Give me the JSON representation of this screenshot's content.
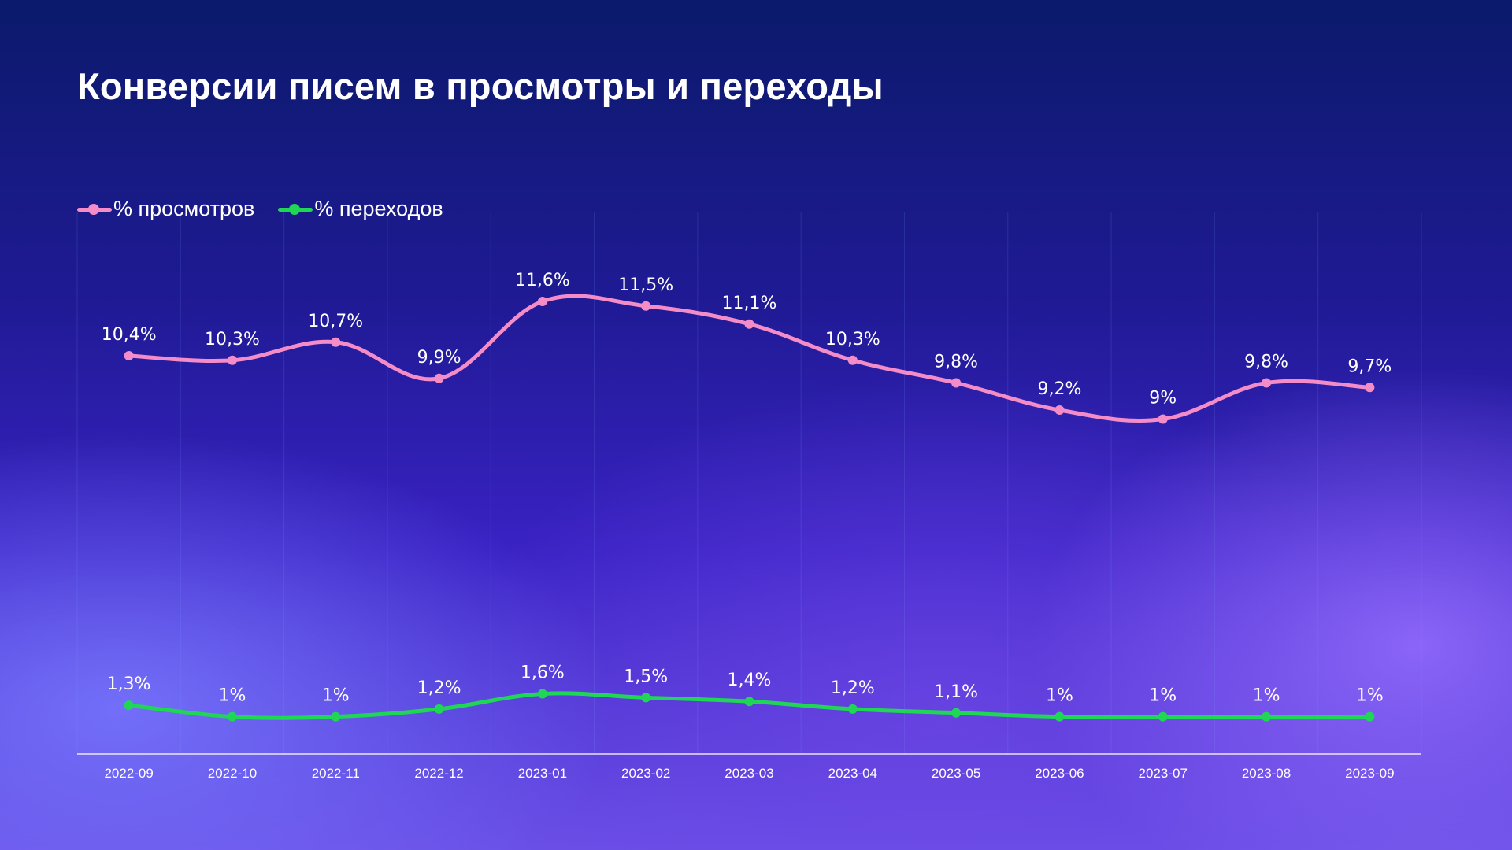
{
  "page": {
    "title": "Конверсии писем в просмотры и переходы"
  },
  "chart_data": {
    "type": "line",
    "title": "Конверсии писем в просмотры и переходы",
    "xlabel": "",
    "ylabel": "",
    "grid": "vertical",
    "legend_position": "top-left",
    "categories": [
      "2022-09",
      "2022-10",
      "2022-11",
      "2022-12",
      "2023-01",
      "2023-02",
      "2023-03",
      "2023-04",
      "2023-05",
      "2023-06",
      "2023-07",
      "2023-08",
      "2023-09"
    ],
    "series": [
      {
        "name": "% просмотров",
        "color": "#f48cc8",
        "values": [
          10.4,
          10.3,
          10.7,
          9.9,
          11.6,
          11.5,
          11.1,
          10.3,
          9.8,
          9.2,
          9.0,
          9.8,
          9.7
        ],
        "labels": [
          "10,4%",
          "10,3%",
          "10,7%",
          "9,9%",
          "11,6%",
          "11,5%",
          "11,1%",
          "10,3%",
          "9,8%",
          "9,2%",
          "9%",
          "9,8%",
          "9,7%"
        ]
      },
      {
        "name": "% переходов",
        "color": "#1fd655",
        "values": [
          1.3,
          1.0,
          1.0,
          1.2,
          1.6,
          1.5,
          1.4,
          1.2,
          1.1,
          1.0,
          1.0,
          1.0,
          1.0
        ],
        "labels": [
          "1,3%",
          "1%",
          "1%",
          "1,2%",
          "1,6%",
          "1,5%",
          "1,4%",
          "1,2%",
          "1,1%",
          "1%",
          "1%",
          "1%",
          "1%"
        ]
      }
    ]
  }
}
